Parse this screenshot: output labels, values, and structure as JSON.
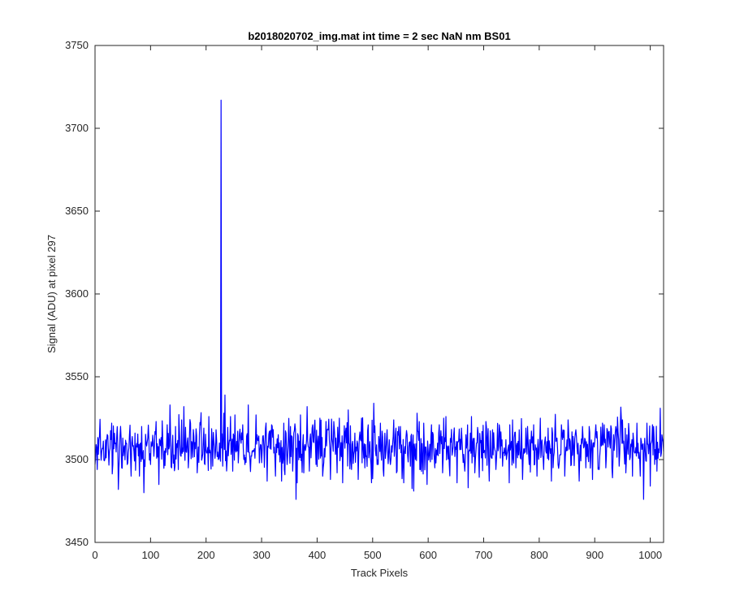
{
  "chart_data": {
    "type": "line",
    "title": "b2018020702_img.mat int time = 2 sec  NaN nm BS01",
    "xlabel": "Track Pixels",
    "ylabel": "Signal (ADU) at pixel 297",
    "xlim": [
      0,
      1024
    ],
    "ylim": [
      3450,
      3750
    ],
    "xticks": [
      0,
      100,
      200,
      300,
      400,
      500,
      600,
      700,
      800,
      900,
      1000
    ],
    "yticks": [
      3450,
      3500,
      3550,
      3600,
      3650,
      3700,
      3750
    ],
    "grid": false,
    "series": [
      {
        "color": "#0000ff",
        "noise": {
          "x_start": 0,
          "x_end": 1024,
          "baseline": 3508,
          "amplitude": 7,
          "seed": 297
        },
        "points": [
          [
            0,
            3497
          ],
          [
            2,
            3509
          ],
          [
            4,
            3494
          ],
          [
            10,
            3508
          ],
          [
            20,
            3501
          ],
          [
            30,
            3522
          ],
          [
            32,
            3497
          ],
          [
            37,
            3510
          ],
          [
            42,
            3482
          ],
          [
            50,
            3513
          ],
          [
            58,
            3497
          ],
          [
            65,
            3490
          ],
          [
            72,
            3516
          ],
          [
            80,
            3490
          ],
          [
            84,
            3520
          ],
          [
            88,
            3480
          ],
          [
            95,
            3513
          ],
          [
            100,
            3497
          ],
          [
            110,
            3523
          ],
          [
            115,
            3485
          ],
          [
            122,
            3512
          ],
          [
            130,
            3521
          ],
          [
            135,
            3533
          ],
          [
            138,
            3495
          ],
          [
            145,
            3520
          ],
          [
            150,
            3494
          ],
          [
            156,
            3524
          ],
          [
            160,
            3532
          ],
          [
            168,
            3495
          ],
          [
            172,
            3522
          ],
          [
            178,
            3514
          ],
          [
            184,
            3492
          ],
          [
            190,
            3521
          ],
          [
            198,
            3497
          ],
          [
            205,
            3526
          ],
          [
            212,
            3496
          ],
          [
            218,
            3518
          ],
          [
            222,
            3500
          ],
          [
            224,
            3510
          ],
          [
            226,
            3499
          ],
          [
            227,
            3717
          ],
          [
            228,
            3507
          ],
          [
            230,
            3496
          ],
          [
            232,
            3528
          ],
          [
            234,
            3539
          ],
          [
            238,
            3500
          ],
          [
            244,
            3526
          ],
          [
            248,
            3493
          ],
          [
            252,
            3527
          ],
          [
            258,
            3498
          ],
          [
            266,
            3521
          ],
          [
            270,
            3497
          ],
          [
            276,
            3533
          ],
          [
            282,
            3502
          ],
          [
            290,
            3527
          ],
          [
            296,
            3498
          ],
          [
            302,
            3514
          ],
          [
            310,
            3487
          ],
          [
            318,
            3521
          ],
          [
            325,
            3490
          ],
          [
            330,
            3515
          ],
          [
            336,
            3487
          ],
          [
            340,
            3522
          ],
          [
            346,
            3497
          ],
          [
            352,
            3520
          ],
          [
            356,
            3493
          ],
          [
            362,
            3476
          ],
          [
            364,
            3486
          ],
          [
            370,
            3527
          ],
          [
            376,
            3492
          ],
          [
            382,
            3532
          ],
          [
            386,
            3493
          ],
          [
            392,
            3521
          ],
          [
            398,
            3497
          ],
          [
            405,
            3525
          ],
          [
            410,
            3490
          ],
          [
            418,
            3518
          ],
          [
            424,
            3488
          ],
          [
            430,
            3523
          ],
          [
            436,
            3492
          ],
          [
            440,
            3525
          ],
          [
            446,
            3486
          ],
          [
            452,
            3519
          ],
          [
            456,
            3530
          ],
          [
            462,
            3494
          ],
          [
            468,
            3516
          ],
          [
            474,
            3488
          ],
          [
            480,
            3525
          ],
          [
            486,
            3495
          ],
          [
            492,
            3521
          ],
          [
            498,
            3486
          ],
          [
            502,
            3534
          ],
          [
            508,
            3497
          ],
          [
            514,
            3522
          ],
          [
            520,
            3490
          ],
          [
            526,
            3518
          ],
          [
            532,
            3497
          ],
          [
            538,
            3524
          ],
          [
            544,
            3493
          ],
          [
            550,
            3520
          ],
          [
            556,
            3486
          ],
          [
            562,
            3515
          ],
          [
            568,
            3496
          ],
          [
            574,
            3481
          ],
          [
            580,
            3528
          ],
          [
            586,
            3494
          ],
          [
            592,
            3522
          ],
          [
            598,
            3485
          ],
          [
            606,
            3521
          ],
          [
            612,
            3495
          ],
          [
            620,
            3521
          ],
          [
            626,
            3492
          ],
          [
            632,
            3526
          ],
          [
            638,
            3497
          ],
          [
            646,
            3515
          ],
          [
            652,
            3486
          ],
          [
            660,
            3519
          ],
          [
            666,
            3493
          ],
          [
            672,
            3483
          ],
          [
            678,
            3526
          ],
          [
            684,
            3492
          ],
          [
            690,
            3516
          ],
          [
            696,
            3501
          ],
          [
            704,
            3523
          ],
          [
            710,
            3487
          ],
          [
            716,
            3518
          ],
          [
            722,
            3494
          ],
          [
            728,
            3521
          ],
          [
            734,
            3496
          ],
          [
            740,
            3512
          ],
          [
            746,
            3486
          ],
          [
            752,
            3524
          ],
          [
            758,
            3495
          ],
          [
            764,
            3518
          ],
          [
            770,
            3488
          ],
          [
            776,
            3519
          ],
          [
            782,
            3497
          ],
          [
            790,
            3521
          ],
          [
            796,
            3490
          ],
          [
            802,
            3525
          ],
          [
            808,
            3494
          ],
          [
            816,
            3519
          ],
          [
            822,
            3487
          ],
          [
            828,
            3515
          ],
          [
            834,
            3497
          ],
          [
            840,
            3521
          ],
          [
            846,
            3490
          ],
          [
            852,
            3524
          ],
          [
            858,
            3497
          ],
          [
            866,
            3518
          ],
          [
            872,
            3487
          ],
          [
            878,
            3520
          ],
          [
            884,
            3495
          ],
          [
            890,
            3520
          ],
          [
            896,
            3488
          ],
          [
            902,
            3521
          ],
          [
            908,
            3494
          ],
          [
            914,
            3522
          ],
          [
            920,
            3495
          ],
          [
            926,
            3517
          ],
          [
            932,
            3489
          ],
          [
            938,
            3520
          ],
          [
            944,
            3496
          ],
          [
            950,
            3524
          ],
          [
            956,
            3492
          ],
          [
            962,
            3516
          ],
          [
            968,
            3490
          ],
          [
            976,
            3522
          ],
          [
            982,
            3490
          ],
          [
            988,
            3476
          ],
          [
            991,
            3505
          ],
          [
            994,
            3522
          ],
          [
            1000,
            3484
          ],
          [
            1006,
            3520
          ],
          [
            1012,
            3493
          ],
          [
            1018,
            3531
          ],
          [
            1024,
            3505
          ]
        ]
      }
    ]
  }
}
